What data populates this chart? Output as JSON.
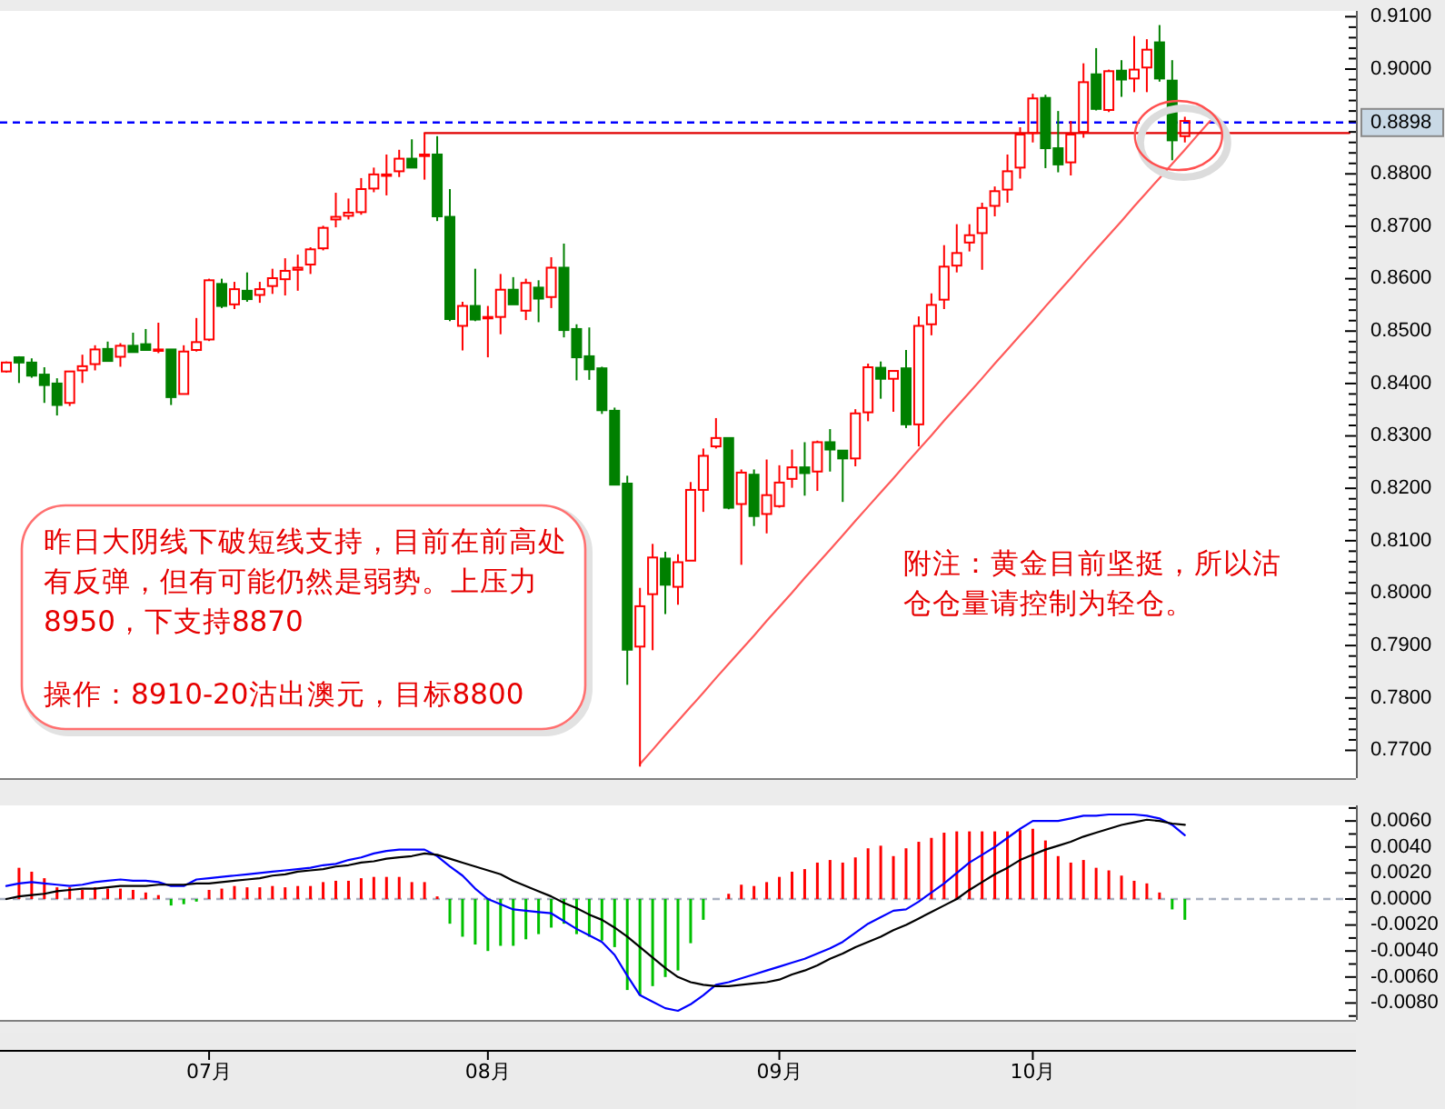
{
  "chart_data": [
    {
      "type": "candlestick",
      "categories": [
        null,
        null,
        null,
        null,
        null,
        null,
        null,
        null,
        null,
        null,
        null,
        null,
        null,
        null,
        null,
        null,
        null,
        null,
        null,
        null,
        null,
        null,
        null,
        null,
        null,
        null,
        null,
        null,
        null,
        null,
        null,
        null,
        null,
        null,
        null,
        null,
        null,
        null,
        null,
        null,
        null,
        null,
        null,
        null,
        null,
        null,
        null,
        null,
        null,
        null,
        null,
        null,
        null,
        null,
        null,
        null,
        null,
        null,
        null,
        null,
        null,
        null,
        null,
        null,
        null,
        null,
        null,
        null,
        null,
        null,
        null,
        null,
        null,
        null,
        null,
        null,
        null,
        null,
        null,
        null,
        null,
        null,
        null,
        null,
        null,
        null,
        null,
        null,
        null,
        null,
        null,
        null,
        null,
        null,
        null,
        null,
        null,
        null,
        null,
        null,
        null,
        null,
        null,
        null,
        null,
        null,
        null
      ],
      "ohlc": [
        [
          0.8423,
          0.8442,
          0.8421,
          0.844
        ],
        [
          0.845,
          0.8452,
          0.8401,
          0.844
        ],
        [
          0.844,
          0.8448,
          0.8411,
          0.8415
        ],
        [
          0.8417,
          0.8431,
          0.8363,
          0.8397
        ],
        [
          0.84,
          0.841,
          0.8339,
          0.8359
        ],
        [
          0.8363,
          0.8423,
          0.8357,
          0.8423
        ],
        [
          0.8425,
          0.8455,
          0.8401,
          0.8433
        ],
        [
          0.8437,
          0.8473,
          0.8425,
          0.8465
        ],
        [
          0.8466,
          0.848,
          0.8443,
          0.8443
        ],
        [
          0.8451,
          0.8477,
          0.8432,
          0.8472
        ],
        [
          0.8472,
          0.8497,
          0.846,
          0.846
        ],
        [
          0.8475,
          0.8504,
          0.8464,
          0.8464
        ],
        [
          0.8464,
          0.8516,
          0.8458,
          0.8465
        ],
        [
          0.8465,
          0.8465,
          0.8359,
          0.8374
        ],
        [
          0.838,
          0.8473,
          0.838,
          0.8461
        ],
        [
          0.8464,
          0.8525,
          0.8461,
          0.8479
        ],
        [
          0.8484,
          0.86,
          0.8481,
          0.8597
        ],
        [
          0.859,
          0.86,
          0.8544,
          0.8548
        ],
        [
          0.8551,
          0.8594,
          0.8542,
          0.858
        ],
        [
          0.8577,
          0.8612,
          0.8556,
          0.8561
        ],
        [
          0.8569,
          0.8594,
          0.8554,
          0.858
        ],
        [
          0.8586,
          0.8619,
          0.8571,
          0.8601
        ],
        [
          0.8599,
          0.8639,
          0.8568,
          0.8615
        ],
        [
          0.8617,
          0.8646,
          0.8577,
          0.8621
        ],
        [
          0.8627,
          0.866,
          0.8609,
          0.8656
        ],
        [
          0.8658,
          0.8701,
          0.8654,
          0.8697
        ],
        [
          0.8713,
          0.8764,
          0.8698,
          0.8718
        ],
        [
          0.872,
          0.8753,
          0.8713,
          0.8726
        ],
        [
          0.8727,
          0.8792,
          0.8722,
          0.8771
        ],
        [
          0.8772,
          0.8812,
          0.8765,
          0.8799
        ],
        [
          0.8797,
          0.8837,
          0.8759,
          0.8799
        ],
        [
          0.8805,
          0.8846,
          0.8794,
          0.8829
        ],
        [
          0.8829,
          0.8866,
          0.8812,
          0.8812
        ],
        [
          0.8834,
          0.8878,
          0.8789,
          0.8837
        ],
        [
          0.8837,
          0.8872,
          0.871,
          0.8719
        ],
        [
          0.8718,
          0.8771,
          0.8519,
          0.8523
        ],
        [
          0.851,
          0.8556,
          0.8463,
          0.8548
        ],
        [
          0.8548,
          0.8619,
          0.8519,
          0.8522
        ],
        [
          0.8525,
          0.8548,
          0.845,
          0.8527
        ],
        [
          0.8527,
          0.8609,
          0.8494,
          0.8579
        ],
        [
          0.8579,
          0.8603,
          0.8551,
          0.8551
        ],
        [
          0.8539,
          0.86,
          0.8521,
          0.8592
        ],
        [
          0.8583,
          0.8597,
          0.8517,
          0.8562
        ],
        [
          0.8565,
          0.8641,
          0.8544,
          0.8621
        ],
        [
          0.8621,
          0.8667,
          0.8488,
          0.8502
        ],
        [
          0.8504,
          0.8513,
          0.8406,
          0.845
        ],
        [
          0.8452,
          0.8507,
          0.8407,
          0.8427
        ],
        [
          0.8429,
          0.8432,
          0.8342,
          0.8349
        ],
        [
          0.8348,
          0.8354,
          0.8207,
          0.8207
        ],
        [
          0.8209,
          0.8224,
          0.7825,
          0.7892
        ],
        [
          0.7898,
          0.801,
          0.7669,
          0.7975
        ],
        [
          0.7998,
          0.8094,
          0.7891,
          0.8068
        ],
        [
          0.8066,
          0.8079,
          0.796,
          0.8016
        ],
        [
          0.8012,
          0.8074,
          0.7978,
          0.8059
        ],
        [
          0.8062,
          0.8212,
          0.8062,
          0.8197
        ],
        [
          0.8197,
          0.8276,
          0.8155,
          0.8262
        ],
        [
          0.828,
          0.8334,
          0.8276,
          0.8296
        ],
        [
          0.8296,
          0.8296,
          0.816,
          0.8163
        ],
        [
          0.817,
          0.8236,
          0.8054,
          0.823
        ],
        [
          0.8226,
          0.8236,
          0.8128,
          0.8147
        ],
        [
          0.8151,
          0.8255,
          0.8114,
          0.8187
        ],
        [
          0.8166,
          0.8244,
          0.8163,
          0.8211
        ],
        [
          0.8218,
          0.8274,
          0.8201,
          0.824
        ],
        [
          0.824,
          0.8288,
          0.8186,
          0.8229
        ],
        [
          0.8232,
          0.8291,
          0.8195,
          0.8288
        ],
        [
          0.8288,
          0.8313,
          0.8232,
          0.8274
        ],
        [
          0.8272,
          0.8272,
          0.8174,
          0.8257
        ],
        [
          0.8257,
          0.8351,
          0.8242,
          0.8343
        ],
        [
          0.8345,
          0.8438,
          0.8328,
          0.8431
        ],
        [
          0.843,
          0.8442,
          0.8371,
          0.8409
        ],
        [
          0.8409,
          0.8424,
          0.8346,
          0.8424
        ],
        [
          0.8429,
          0.8464,
          0.8315,
          0.8322
        ],
        [
          0.8322,
          0.8528,
          0.828,
          0.851
        ],
        [
          0.8513,
          0.8572,
          0.8492,
          0.855
        ],
        [
          0.856,
          0.8664,
          0.8542,
          0.8623
        ],
        [
          0.8625,
          0.8704,
          0.8612,
          0.8649
        ],
        [
          0.8669,
          0.8704,
          0.8652,
          0.8683
        ],
        [
          0.8687,
          0.8745,
          0.8617,
          0.8735
        ],
        [
          0.8739,
          0.8776,
          0.8719,
          0.8767
        ],
        [
          0.877,
          0.8837,
          0.8745,
          0.8805
        ],
        [
          0.8812,
          0.8889,
          0.8791,
          0.8875
        ],
        [
          0.8878,
          0.8953,
          0.886,
          0.8944
        ],
        [
          0.8945,
          0.8951,
          0.8811,
          0.8849
        ],
        [
          0.8849,
          0.892,
          0.8803,
          0.8818
        ],
        [
          0.8822,
          0.8901,
          0.8797,
          0.8875
        ],
        [
          0.888,
          0.9011,
          0.8869,
          0.8975
        ],
        [
          0.899,
          0.904,
          0.8921,
          0.8924
        ],
        [
          0.8922,
          0.8999,
          0.8918,
          0.8996
        ],
        [
          0.8997,
          0.9017,
          0.8947,
          0.898
        ],
        [
          0.8982,
          0.9063,
          0.8956,
          0.8999
        ],
        [
          0.9003,
          0.9057,
          0.8956,
          0.9037
        ],
        [
          0.9051,
          0.9084,
          0.8976,
          0.8982
        ],
        [
          0.8978,
          0.9017,
          0.8826,
          0.8864
        ],
        [
          0.8872,
          0.8909,
          0.886,
          0.8901
        ],
        null,
        null,
        null,
        null,
        null,
        null,
        null,
        null,
        null,
        null,
        null,
        null,
        null
      ],
      "ylim": [
        0.7647,
        0.9111
      ],
      "yticks": [
        {
          "value": 0.77,
          "label": "0.7700"
        },
        {
          "value": 0.772,
          "label": null
        },
        {
          "value": 0.774,
          "label": null
        },
        {
          "value": 0.776,
          "label": null
        },
        {
          "value": 0.778,
          "label": null
        },
        {
          "value": 0.78,
          "label": "0.7800"
        },
        {
          "value": 0.782,
          "label": null
        },
        {
          "value": 0.784,
          "label": null
        },
        {
          "value": 0.786,
          "label": null
        },
        {
          "value": 0.788,
          "label": null
        },
        {
          "value": 0.79,
          "label": "0.7900"
        },
        {
          "value": 0.792,
          "label": null
        },
        {
          "value": 0.794,
          "label": null
        },
        {
          "value": 0.796,
          "label": null
        },
        {
          "value": 0.798,
          "label": null
        },
        {
          "value": 0.8,
          "label": "0.8000"
        },
        {
          "value": 0.802,
          "label": null
        },
        {
          "value": 0.804,
          "label": null
        },
        {
          "value": 0.806,
          "label": null
        },
        {
          "value": 0.808,
          "label": null
        },
        {
          "value": 0.81,
          "label": "0.8100"
        },
        {
          "value": 0.812,
          "label": null
        },
        {
          "value": 0.814,
          "label": null
        },
        {
          "value": 0.816,
          "label": null
        },
        {
          "value": 0.818,
          "label": null
        },
        {
          "value": 0.82,
          "label": "0.8200"
        },
        {
          "value": 0.822,
          "label": null
        },
        {
          "value": 0.824,
          "label": null
        },
        {
          "value": 0.826,
          "label": null
        },
        {
          "value": 0.828,
          "label": null
        },
        {
          "value": 0.83,
          "label": "0.8300"
        },
        {
          "value": 0.832,
          "label": null
        },
        {
          "value": 0.834,
          "label": null
        },
        {
          "value": 0.836,
          "label": null
        },
        {
          "value": 0.838,
          "label": null
        },
        {
          "value": 0.84,
          "label": "0.8400"
        },
        {
          "value": 0.842,
          "label": null
        },
        {
          "value": 0.844,
          "label": null
        },
        {
          "value": 0.846,
          "label": null
        },
        {
          "value": 0.848,
          "label": null
        },
        {
          "value": 0.85,
          "label": "0.8500"
        },
        {
          "value": 0.852,
          "label": null
        },
        {
          "value": 0.854,
          "label": null
        },
        {
          "value": 0.856,
          "label": null
        },
        {
          "value": 0.858,
          "label": null
        },
        {
          "value": 0.86,
          "label": "0.8600"
        },
        {
          "value": 0.862,
          "label": null
        },
        {
          "value": 0.864,
          "label": null
        },
        {
          "value": 0.866,
          "label": null
        },
        {
          "value": 0.868,
          "label": null
        },
        {
          "value": 0.87,
          "label": "0.8700"
        },
        {
          "value": 0.872,
          "label": null
        },
        {
          "value": 0.874,
          "label": null
        },
        {
          "value": 0.876,
          "label": null
        },
        {
          "value": 0.878,
          "label": null
        },
        {
          "value": 0.88,
          "label": "0.8800"
        },
        {
          "value": 0.882,
          "label": null
        },
        {
          "value": 0.884,
          "label": null
        },
        {
          "value": 0.886,
          "label": null
        },
        {
          "value": 0.888,
          "label": null
        },
        {
          "value": 0.89,
          "label": null
        },
        {
          "value": 0.892,
          "label": null
        },
        {
          "value": 0.894,
          "label": null
        },
        {
          "value": 0.896,
          "label": null
        },
        {
          "value": 0.898,
          "label": null
        },
        {
          "value": 0.9,
          "label": "0.9000"
        },
        {
          "value": 0.902,
          "label": null
        },
        {
          "value": 0.904,
          "label": null
        },
        {
          "value": 0.906,
          "label": null
        },
        {
          "value": 0.908,
          "label": null
        },
        {
          "value": 0.91,
          "label": "0.9100"
        }
      ],
      "tick_labels": "y",
      "ref_lines": [
        {
          "axis": "y",
          "value": 0.8898,
          "label": "0.8898",
          "color": "#0000ff",
          "line_style": "dashed"
        }
      ],
      "series": [
        {
          "type": "line",
          "color": "#ff5a5a",
          "values": [
            null,
            null,
            null,
            null,
            null,
            null,
            null,
            null,
            null,
            null,
            null,
            null,
            null,
            null,
            null,
            null,
            null,
            null,
            null,
            null,
            null,
            null,
            null,
            null,
            null,
            null,
            null,
            null,
            null,
            null,
            null,
            null,
            null,
            null,
            null,
            null,
            null,
            null,
            null,
            null,
            null,
            null,
            null,
            null,
            null,
            null,
            null,
            null,
            null,
            null,
            0.7674,
            0.7701,
            0.7729,
            0.7756,
            0.7783,
            0.781,
            0.7838,
            0.7865,
            0.7892,
            0.7919,
            0.7947,
            0.7974,
            0.8001,
            0.8029,
            0.8056,
            0.8083,
            0.811,
            0.8138,
            0.8165,
            0.8192,
            0.8219,
            0.8247,
            0.8274,
            0.8301,
            0.8329,
            0.8356,
            0.8383,
            0.841,
            0.8438,
            0.8465,
            0.8492,
            0.8519,
            0.8547,
            0.8574,
            0.8601,
            0.8629,
            0.8656,
            0.8683,
            0.871,
            0.8738,
            0.8765,
            0.8792,
            0.8819,
            0.8846,
            0.8874,
            0.8901,
            null,
            null,
            null,
            null,
            null,
            null,
            null,
            null,
            null,
            null,
            null
          ]
        },
        {
          "type": "line",
          "color": "#e00000",
          "values": [
            null,
            null,
            null,
            null,
            null,
            null,
            null,
            null,
            null,
            null,
            null,
            null,
            null,
            null,
            null,
            null,
            null,
            null,
            null,
            null,
            null,
            null,
            null,
            null,
            null,
            null,
            null,
            null,
            null,
            null,
            null,
            null,
            null,
            0.8878,
            0.8878,
            0.8878,
            0.8878,
            0.8878,
            0.8878,
            0.8878,
            0.8878,
            0.8878,
            0.8878,
            0.8878,
            0.8878,
            0.8878,
            0.8878,
            0.8878,
            0.8878,
            0.8878,
            0.8878,
            0.8878,
            0.8878,
            0.8878,
            0.8878,
            0.8878,
            0.8878,
            0.8878,
            0.8878,
            0.8878,
            0.8878,
            0.8878,
            0.8878,
            0.8878,
            0.8878,
            0.8878,
            0.8878,
            0.8878,
            0.8878,
            0.8878,
            0.8878,
            0.8878,
            0.8878,
            0.8878,
            0.8878,
            0.8878,
            0.8878,
            0.8878,
            0.8878,
            0.8878,
            0.8878,
            0.8878,
            0.8878,
            0.8878,
            0.8878,
            0.8878,
            0.8878,
            0.8878,
            0.8878,
            0.8878,
            0.8878,
            0.8878,
            0.8878,
            0.8878,
            0.8878,
            0.8878,
            0.8878,
            0.8878,
            0.8878,
            0.8878,
            0.8878,
            0.8878,
            0.8878,
            0.8878,
            0.8878,
            0.8878,
            0.8878
          ]
        }
      ],
      "annotations": [
        "昨日大阴线下破短线支持，目前在前高处有反弹，但有可能仍然是弱势。上压力8950，下支持8870",
        "操作：8910-20沽出澳元，目标8800",
        "附注：黄金目前坚挺，所以沽仓仓量请控制为轻仓。"
      ]
    },
    {
      "type": "bar",
      "categories": [
        null,
        null,
        null,
        null,
        null,
        null,
        null,
        null,
        null,
        null,
        null,
        null,
        null,
        null,
        null,
        null,
        "07月",
        null,
        null,
        null,
        null,
        null,
        null,
        null,
        null,
        null,
        null,
        null,
        null,
        null,
        null,
        null,
        null,
        null,
        null,
        null,
        null,
        null,
        "08月",
        null,
        null,
        null,
        null,
        null,
        null,
        null,
        null,
        null,
        null,
        null,
        null,
        null,
        null,
        null,
        null,
        null,
        null,
        null,
        null,
        null,
        null,
        "09月",
        null,
        null,
        null,
        null,
        null,
        null,
        null,
        null,
        null,
        null,
        null,
        null,
        null,
        null,
        null,
        null,
        null,
        null,
        null,
        "10月",
        null,
        null,
        null,
        null,
        null,
        null,
        null,
        null,
        null,
        null,
        null,
        null,
        null,
        null,
        null,
        null,
        null,
        null,
        null,
        null,
        null,
        null,
        null,
        null,
        null
      ],
      "ylim": [
        -0.0093,
        0.0072
      ],
      "yticks": [
        {
          "value": -0.009,
          "label": null
        },
        {
          "value": -0.008,
          "label": "-0.0080"
        },
        {
          "value": -0.007,
          "label": null
        },
        {
          "value": -0.006,
          "label": "-0.0060"
        },
        {
          "value": -0.005,
          "label": null
        },
        {
          "value": -0.004,
          "label": "-0.0040"
        },
        {
          "value": -0.003,
          "label": null
        },
        {
          "value": -0.002,
          "label": "-0.0020"
        },
        {
          "value": -0.001,
          "label": null
        },
        {
          "value": 0,
          "label": "0.0000"
        },
        {
          "value": 0.001,
          "label": null
        },
        {
          "value": 0.002,
          "label": "0.0020"
        },
        {
          "value": 0.003,
          "label": null
        },
        {
          "value": 0.004,
          "label": "0.0040"
        },
        {
          "value": 0.005,
          "label": null
        },
        {
          "value": 0.006,
          "label": "0.0060"
        },
        {
          "value": 0.007,
          "label": null
        }
      ],
      "ref_lines": [
        {
          "axis": "y",
          "value": 0,
          "color": "#a8b0c0",
          "line_style": "dashed"
        }
      ],
      "series": [
        {
          "type": "bar",
          "color": "#ff0000",
          "values": [
            null,
            0.0024,
            0.0021,
            0.0016,
            0.0009,
            0.0009,
            0.0007,
            0.0009,
            0.0008,
            0.0008,
            0.0007,
            0.0005,
            0.0003,
            null,
            null,
            null,
            0.0007,
            0.0008,
            0.001,
            0.0009,
            0.0009,
            0.001,
            0.0009,
            0.001,
            0.001,
            0.0013,
            0.0014,
            0.0014,
            0.0016,
            0.0017,
            0.0017,
            0.0017,
            0.0013,
            0.0013,
            0.0002,
            null,
            null,
            null,
            null,
            null,
            null,
            null,
            null,
            null,
            null,
            null,
            null,
            null,
            null,
            null,
            null,
            null,
            null,
            null,
            null,
            null,
            null,
            0.0004,
            0.0011,
            0.001,
            0.0013,
            0.0017,
            0.0021,
            0.0023,
            0.0028,
            0.003,
            0.0028,
            0.0032,
            0.0039,
            0.0041,
            0.0033,
            0.0039,
            0.0044,
            0.0047,
            0.0051,
            0.0052,
            0.0052,
            0.0052,
            0.0052,
            0.0052,
            0.0053,
            0.0054,
            0.0045,
            0.0033,
            0.0028,
            0.003,
            0.0024,
            0.0022,
            0.0018,
            0.0014,
            0.0012,
            0.0005,
            null,
            null,
            null,
            null,
            null,
            null,
            null,
            null,
            null,
            null,
            null,
            null,
            null,
            null,
            null
          ]
        },
        {
          "type": "bar",
          "color": "#00c000",
          "values": [
            null,
            null,
            null,
            null,
            null,
            null,
            null,
            null,
            null,
            null,
            null,
            null,
            null,
            -0.0005,
            -0.0004,
            -0.0002,
            null,
            null,
            null,
            null,
            null,
            null,
            null,
            null,
            null,
            null,
            null,
            null,
            null,
            null,
            null,
            null,
            null,
            null,
            null,
            -0.0019,
            -0.0029,
            -0.0035,
            -0.004,
            -0.0036,
            -0.0036,
            -0.0031,
            -0.0027,
            -0.0022,
            -0.0019,
            -0.0027,
            -0.0029,
            -0.0032,
            -0.0037,
            -0.007,
            -0.0074,
            -0.0067,
            -0.006,
            -0.0055,
            -0.0034,
            -0.0016,
            null,
            null,
            null,
            null,
            null,
            null,
            null,
            null,
            null,
            null,
            null,
            null,
            null,
            null,
            null,
            null,
            null,
            null,
            null,
            null,
            null,
            null,
            null,
            null,
            null,
            null,
            null,
            null,
            null,
            null,
            null,
            null,
            null,
            null,
            null,
            null,
            -0.0008,
            -0.0016,
            null,
            null,
            null,
            null,
            null,
            null,
            null,
            null,
            null,
            null,
            null,
            null,
            null
          ]
        },
        {
          "type": "line",
          "color": "#0000ff",
          "values": [
            0.001,
            0.0012,
            0.0013,
            0.0012,
            0.0011,
            0.001,
            0.0011,
            0.0013,
            0.0014,
            0.0015,
            0.0014,
            0.0014,
            0.0013,
            0.001,
            0.001,
            0.0015,
            0.0016,
            0.0017,
            0.0018,
            0.0019,
            0.002,
            0.0021,
            0.0022,
            0.0023,
            0.0024,
            0.0026,
            0.0027,
            0.003,
            0.0032,
            0.0035,
            0.0037,
            0.0038,
            0.0038,
            0.0038,
            0.0033,
            0.0025,
            0.0018,
            0.0008,
            0.0,
            -0.0004,
            -0.0008,
            -0.0009,
            -0.001,
            -0.0011,
            -0.0017,
            -0.0023,
            -0.0028,
            -0.0033,
            -0.0043,
            -0.0059,
            -0.0074,
            -0.0079,
            -0.0084,
            -0.0086,
            -0.0081,
            -0.0074,
            -0.0066,
            -0.0064,
            -0.0061,
            -0.0058,
            -0.0055,
            -0.0052,
            -0.0049,
            -0.0046,
            -0.0042,
            -0.0038,
            -0.0033,
            -0.0026,
            -0.0019,
            -0.0014,
            -0.0009,
            -0.0008,
            -0.0002,
            0.0005,
            0.0012,
            0.002,
            0.0028,
            0.0034,
            0.004,
            0.0047,
            0.0054,
            0.006,
            0.006,
            0.006,
            0.0062,
            0.0064,
            0.0064,
            0.0065,
            0.0065,
            0.0065,
            0.0064,
            0.0062,
            0.0057,
            0.0049,
            null,
            null,
            null,
            null,
            null,
            null,
            null,
            null,
            null,
            null,
            null,
            null,
            null
          ]
        },
        {
          "type": "line",
          "color": "#000000",
          "values": [
            0.0,
            0.0002,
            0.0003,
            0.0004,
            0.0006,
            0.0007,
            0.0008,
            0.0008,
            0.0009,
            0.001,
            0.001,
            0.001,
            0.0011,
            0.0011,
            0.0011,
            0.0012,
            0.0012,
            0.0013,
            0.0014,
            0.0015,
            0.0016,
            0.0018,
            0.0019,
            0.0021,
            0.0022,
            0.0023,
            0.0025,
            0.0026,
            0.0028,
            0.0029,
            0.0031,
            0.0032,
            0.0033,
            0.0035,
            0.0034,
            0.0031,
            0.0028,
            0.0025,
            0.0022,
            0.0019,
            0.0014,
            0.001,
            0.0006,
            0.0002,
            -0.0003,
            -0.0007,
            -0.0012,
            -0.0016,
            -0.0022,
            -0.0029,
            -0.0037,
            -0.0045,
            -0.0053,
            -0.006,
            -0.0064,
            -0.0066,
            -0.0067,
            -0.0067,
            -0.0066,
            -0.0065,
            -0.0064,
            -0.0062,
            -0.0058,
            -0.0055,
            -0.0051,
            -0.0046,
            -0.0042,
            -0.0037,
            -0.0033,
            -0.0029,
            -0.0024,
            -0.002,
            -0.0015,
            -0.001,
            -0.0005,
            0.0,
            0.0007,
            0.0013,
            0.0019,
            0.0024,
            0.003,
            0.0034,
            0.0038,
            0.0041,
            0.0044,
            0.0048,
            0.0051,
            0.0054,
            0.0057,
            0.0059,
            0.0061,
            0.006,
            0.0058,
            0.0057,
            null,
            null,
            null,
            null,
            null,
            null,
            null,
            null,
            null,
            null,
            null,
            null,
            null
          ]
        }
      ]
    }
  ]
}
